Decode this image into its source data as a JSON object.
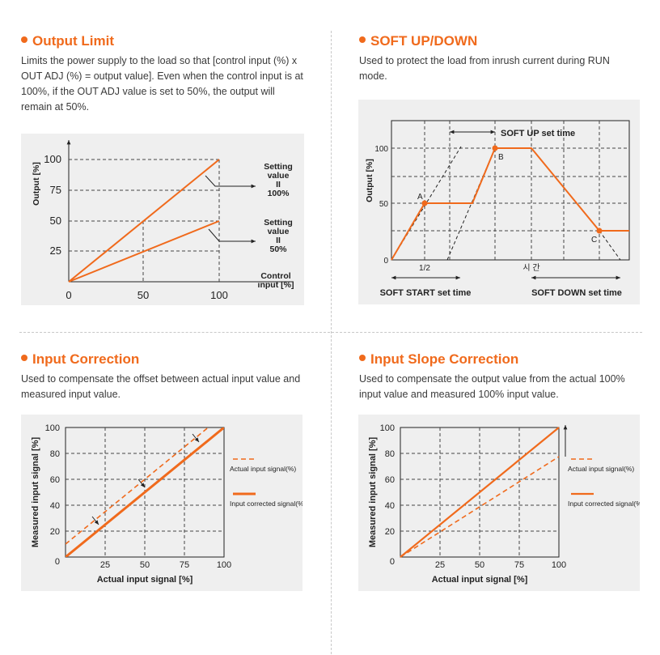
{
  "colors": {
    "accent": "#f06a1c",
    "panel_bg": "#efefef",
    "grid": "#333333",
    "line": "#f06a1c"
  },
  "sections": {
    "output_limit": {
      "title": "Output Limit",
      "description": "Limits the power supply to the load so that [control input (%) x OUT ADJ (%) = output value]. Even when the control input is at 100%, if the OUT ADJ value is set to 50%, the output will remain at 50%.",
      "chart": {
        "y_label": "Output [%]",
        "x_label_line1": "Control",
        "x_label_line2": "input [%]",
        "y_ticks": [
          "100",
          "75",
          "50",
          "25"
        ],
        "x_ticks": [
          "0",
          "50",
          "100"
        ],
        "annotation_100": [
          "Setting",
          "value",
          "II",
          "100%"
        ],
        "annotation_50": [
          "Setting",
          "value",
          "II",
          "50%"
        ]
      }
    },
    "soft_updown": {
      "title": "SOFT UP/DOWN",
      "description": "Used to protect the load from inrush current during RUN mode.",
      "chart": {
        "y_label": "Output [%]",
        "y_ticks": [
          "100",
          "50",
          "0"
        ],
        "x_tick_half": "1/2",
        "x_tick_time": "시 간",
        "soft_up_label": "SOFT UP set time",
        "soft_start_label": "SOFT START set time",
        "soft_down_label": "SOFT DOWN set time",
        "point_a": "A",
        "point_b": "B",
        "point_c": "C"
      }
    },
    "input_correction": {
      "title": "Input Correction",
      "description": "Used to compensate the offset between actual input value and measured input value.",
      "chart": {
        "y_label": "Measured input signal [%]",
        "x_label": "Actual input signal [%]",
        "y_ticks": [
          "100",
          "80",
          "60",
          "40",
          "20",
          "0"
        ],
        "x_ticks": [
          "25",
          "50",
          "75",
          "100"
        ],
        "legend_actual": "Actual input signal(%)",
        "legend_corrected": "Input corrected signal(%)"
      }
    },
    "input_slope": {
      "title": "Input Slope Correction",
      "description": "Used to compensate the output value from the actual 100% input value and measured 100% input value.",
      "chart": {
        "y_label": "Measured input signal [%]",
        "x_label": "Actual input signal [%]",
        "y_ticks": [
          "100",
          "80",
          "60",
          "40",
          "20",
          "0"
        ],
        "x_ticks": [
          "25",
          "50",
          "75",
          "100"
        ],
        "legend_actual": "Actual input signal(%)",
        "legend_corrected": "Input corrected signal(%)"
      }
    }
  }
}
